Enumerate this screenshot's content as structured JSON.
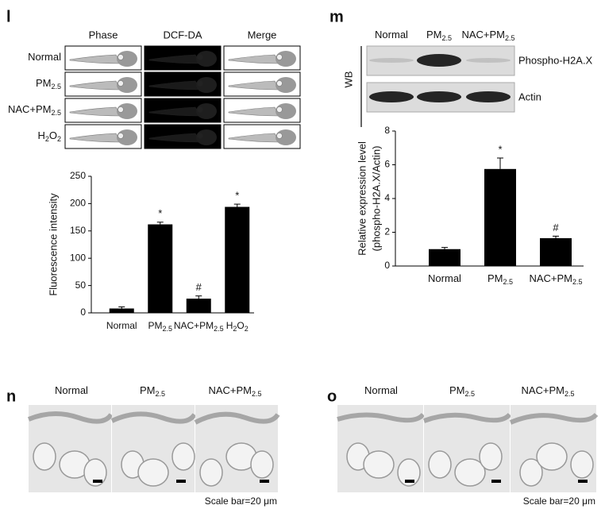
{
  "panel_l": {
    "label": "l",
    "columns": [
      "Phase",
      "DCF-DA",
      "Merge"
    ],
    "rows": [
      "Normal",
      "PM2.5",
      "NAC+PM2.5",
      "H2O2"
    ]
  },
  "panel_m": {
    "label": "m",
    "lanes": [
      "Normal",
      "PM2.5",
      "NAC+PM2.5"
    ],
    "method": "WB",
    "bands": [
      "Phospho-H2A.X",
      "Actin"
    ]
  },
  "panel_n": {
    "label": "n",
    "columns": [
      "Normal",
      "PM2.5",
      "NAC+PM2.5"
    ],
    "scale_bar": "Scale bar=20 μm"
  },
  "panel_o": {
    "label": "o",
    "columns": [
      "Normal",
      "PM2.5",
      "NAC+PM2.5"
    ],
    "scale_bar": "Scale bar=20 μm"
  },
  "chart_data": [
    {
      "type": "bar",
      "y_label_lines": [
        "Fluorescence intensity"
      ],
      "categories": [
        "Normal",
        "PM2.5",
        "NAC+PM2.5",
        "H2O2"
      ],
      "values": [
        8,
        162,
        26,
        194
      ],
      "errors": [
        3,
        4,
        5,
        5
      ],
      "annotations": [
        null,
        "*",
        "#",
        "*"
      ],
      "color": "#000000",
      "ylim": [
        0,
        250
      ],
      "yticks": [
        0,
        50,
        100,
        150,
        200,
        250
      ]
    },
    {
      "type": "bar",
      "y_label_lines": [
        "Relative expression level",
        "(phospho-H2A.X/Actin)"
      ],
      "categories": [
        "Normal",
        "PM2.5",
        "NAC+PM2.5"
      ],
      "values": [
        1.0,
        5.75,
        1.65
      ],
      "errors": [
        0.1,
        0.65,
        0.12
      ],
      "annotations": [
        null,
        "*",
        "#"
      ],
      "color": "#000000",
      "ylim": [
        0,
        8
      ],
      "yticks": [
        0,
        2,
        4,
        6,
        8
      ]
    }
  ]
}
